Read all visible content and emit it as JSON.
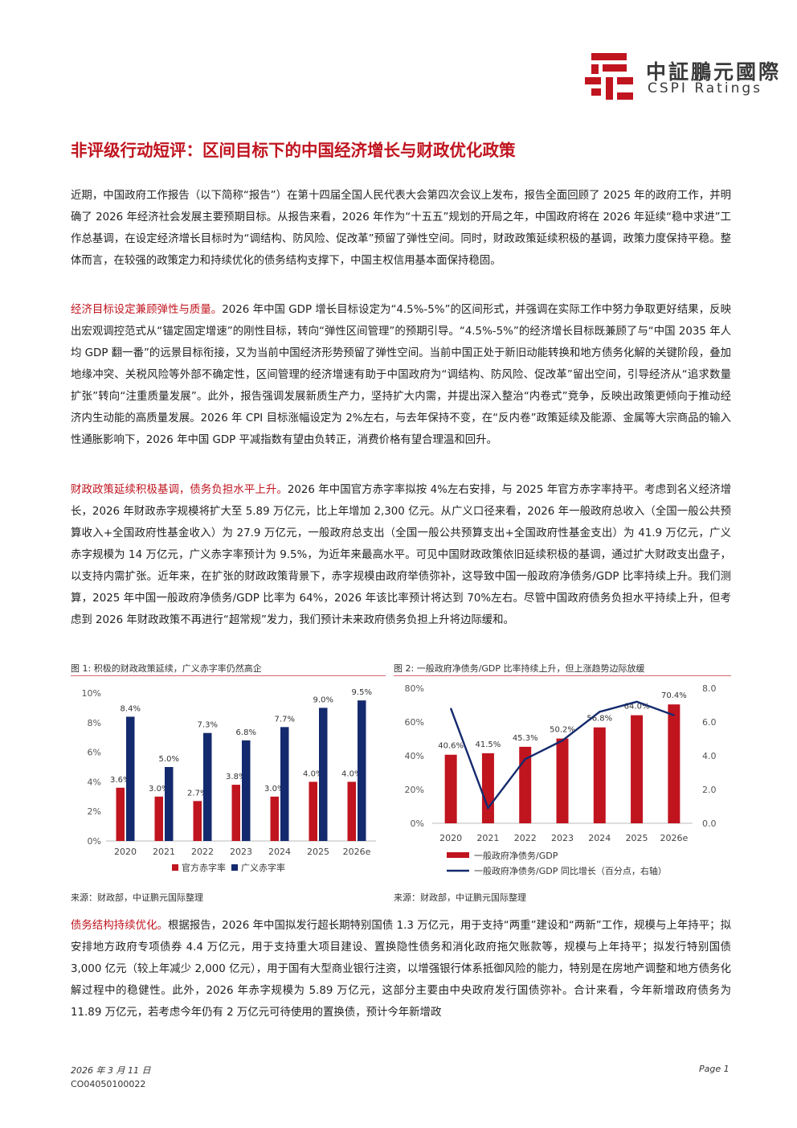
{
  "header": {
    "logo_cn": "中証鵬元國際",
    "logo_en": "CSPI Ratings",
    "brand_color": "#c0141f"
  },
  "title": "非评级行动短评：区间目标下的中国经济增长与财政优化政策",
  "paragraphs": {
    "p1": "近期，中国政府工作报告（以下简称“报告”）在第十四届全国人民代表大会第四次会议上发布，报告全面回顾了 2025 年的政府工作，并明确了 2026 年经济社会发展主要预期目标。从报告来看，2026 年作为“十五五”规划的开局之年，中国政府将在 2026 年延续“稳中求进”工作总基调，在设定经济增长目标时为“调结构、防风险、促改革”预留了弹性空间。同时，财政政策延续积极的基调，政策力度保持平稳。整体而言，在较强的政策定力和持续优化的债务结构支撑下，中国主权信用基本面保持稳固。",
    "p2_head": "经济目标设定兼顾弹性与质量。",
    "p2_body": "2026 年中国 GDP 增长目标设定为“4.5%-5%”的区间形式，并强调在实际工作中努力争取更好结果，反映出宏观调控范式从“锚定固定增速”的刚性目标，转向“弹性区间管理”的预期引导。“4.5%-5%”的经济增长目标既兼顾了与“中国 2035 年人均 GDP 翻一番”的远景目标衔接，又为当前中国经济形势预留了弹性空间。当前中国正处于新旧动能转换和地方债务化解的关键阶段，叠加地缘冲突、关税风险等外部不确定性，区间管理的经济增速有助于中国政府为“调结构、防风险、促改革”留出空间，引导经济从“追求数量扩张”转向“注重质量发展”。此外，报告强调发展新质生产力，坚持扩大内需，并提出深入整治“内卷式”竞争，反映出政策更倾向于推动经济内生动能的高质量发展。2026 年 CPI 目标涨幅设定为 2%左右，与去年保持不变，在“反内卷”政策延续及能源、金属等大宗商品的输入性通胀影响下，2026 年中国 GDP 平减指数有望由负转正，消费价格有望合理温和回升。",
    "p3_head": "财政政策延续积极基调，债务负担水平上升。",
    "p3_body": "2026 年中国官方赤字率拟按 4%左右安排，与 2025 年官方赤字率持平。考虑到名义经济增长，2026 年财政赤字规模将扩大至 5.89 万亿元，比上年增加 2,300 亿元。从广义口径来看，2026 年一般政府总收入（全国一般公共预算收入+全国政府性基金收入）为 27.9 万亿元，一般政府总支出（全国一般公共预算支出+全国政府性基金支出）为 41.9 万亿元，广义赤字规模为 14 万亿元，广义赤字率预计为 9.5%，为近年来最高水平。可见中国财政政策依旧延续积极的基调，通过扩大财政支出盘子，以支持内需扩张。近年来，在扩张的财政政策背景下，赤字规模由政府举债弥补，这导致中国一般政府净债务/GDP 比率持续上升。我们测算，2025 年中国一般政府净债务/GDP 比率为 64%，2026 年该比率预计将达到 70%左右。尽管中国政府债务负担水平持续上升，但考虑到 2026 年财政政策不再进行“超常规”发力，我们预计未来政府债务负担上升将边际缓和。",
    "p4_head": "债务结构持续优化。",
    "p4_body": "根据报告，2026 年中国拟发行超长期特别国债 1.3 万亿元，用于支持“两重”建设和“两新”工作，规模与上年持平；拟安排地方政府专项债券 4.4 万亿元，用于支持重大项目建设、置换隐性债务和消化政府拖欠账款等，规模与上年持平；拟发行特别国债 3,000 亿元（较上年减少 2,000 亿元），用于国有大型商业银行注资，以增强银行体系抵御风险的能力，特别是在房地产调整和地方债务化解过程中的稳健性。此外，2026 年赤字规模为 5.89 万亿元，这部分主要由中央政府发行国债弥补。合计来看，今年新增政府债务为 11.89 万亿元，若考虑今年仍有 2 万亿元可待使用的置换债，预计今年新增政"
  },
  "figure1": {
    "caption": "图 1: 积极的财政政策延续，广义赤字率仍然高企",
    "source": "来源：财政部，中证鹏元国际整理"
  },
  "figure2": {
    "caption": "图 2: 一般政府净债务/GDP 比率持续上升，但上涨趋势边际放缓",
    "source": "来源：财政部，中证鹏元国际整理"
  },
  "chart_data": [
    {
      "type": "bar",
      "title": "",
      "categories": [
        "2020",
        "2021",
        "2022",
        "2023",
        "2024",
        "2025",
        "2026e"
      ],
      "series": [
        {
          "name": "官方赤字率",
          "color": "#c0141f",
          "values": [
            3.6,
            3.0,
            2.7,
            3.8,
            3.0,
            4.0,
            4.0
          ],
          "labels": [
            "3.6%",
            "3.0%",
            "2.7%",
            "3.8%",
            "3.0%",
            "4.0%",
            "4.0%"
          ]
        },
        {
          "name": "广义赤字率",
          "color": "#142a6e",
          "values": [
            8.4,
            5.0,
            7.3,
            6.8,
            7.7,
            9.0,
            9.5
          ],
          "labels": [
            "8.4%",
            "5.0%",
            "7.3%",
            "6.8%",
            "7.7%",
            "9.0%",
            "9.5%"
          ]
        }
      ],
      "yticks": [
        "0%",
        "2%",
        "4%",
        "6%",
        "8%",
        "10%"
      ],
      "ylim": [
        0,
        10
      ],
      "legend": "bottom"
    },
    {
      "type": "bar+line",
      "title": "",
      "categories": [
        "2020",
        "2021",
        "2022",
        "2023",
        "2024",
        "2025",
        "2026e"
      ],
      "series": [
        {
          "name": "一般政府净债务/GDP",
          "kind": "bar",
          "axis": "left",
          "color": "#c0141f",
          "values": [
            40.6,
            41.5,
            45.3,
            50.2,
            56.8,
            64.0,
            70.4
          ],
          "labels": [
            "40.6%",
            "41.5%",
            "45.3%",
            "50.2%",
            "56.8%",
            "64.0%",
            "70.4%"
          ]
        },
        {
          "name": "一般政府净债务/GDP 同比增长（百分点，右轴）",
          "kind": "line",
          "axis": "right",
          "color": "#142a6e",
          "values": [
            6.8,
            0.9,
            3.8,
            4.9,
            6.6,
            7.2,
            6.4
          ]
        }
      ],
      "yticks_left": [
        "0%",
        "20%",
        "40%",
        "60%",
        "80%"
      ],
      "yticks_right": [
        "0.0",
        "2.0",
        "4.0",
        "6.0",
        "8.0"
      ],
      "ylim_left": [
        0,
        80
      ],
      "ylim_right": [
        0,
        8
      ],
      "legend": "bottom"
    }
  ],
  "footer": {
    "date": "2026 年 3 月 11 日",
    "code": "CO04050100022",
    "page": "Page 1"
  }
}
